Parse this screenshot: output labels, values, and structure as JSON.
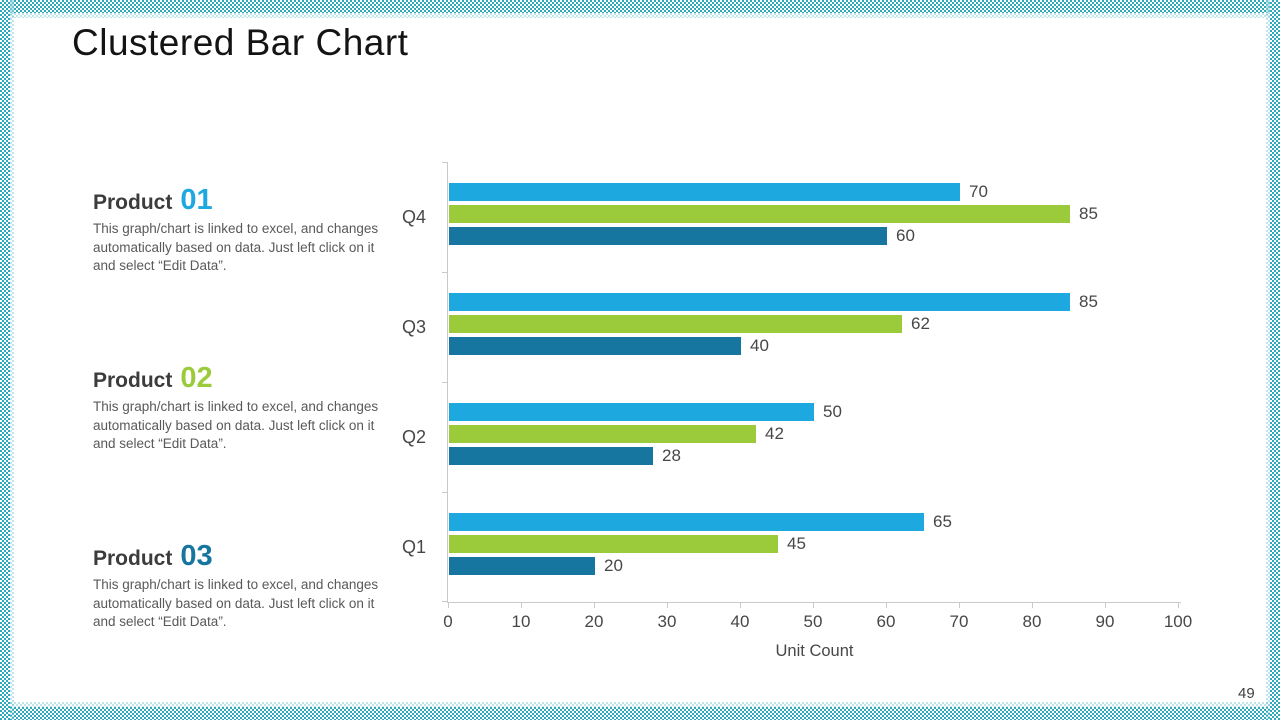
{
  "slide": {
    "title": "Clustered Bar Chart",
    "page_number": "49",
    "border_color": "#2ea9ba"
  },
  "products": [
    {
      "label": "Product",
      "number": "01",
      "number_color": "#1ea8e0",
      "description": "This graph/chart is linked to excel, and changes automatically based on data. Just left click on it and select “Edit Data”."
    },
    {
      "label": "Product",
      "number": "02",
      "number_color": "#9bcb3b",
      "description": "This graph/chart is linked to excel, and changes automatically based on data. Just left click on it and select “Edit Data”."
    },
    {
      "label": "Product",
      "number": "03",
      "number_color": "#16769f",
      "description": "This graph/chart is linked to excel, and changes automatically based on data. Just left click on it and select “Edit Data”."
    }
  ],
  "chart_data": {
    "type": "bar",
    "orientation": "horizontal",
    "title": "",
    "xlabel": "Unit Count",
    "ylabel": "",
    "xlim": [
      0,
      100
    ],
    "x_ticks": [
      0,
      10,
      20,
      30,
      40,
      50,
      60,
      70,
      80,
      90,
      100
    ],
    "grid": false,
    "legend_position": "none",
    "data_labels": true,
    "categories": [
      "Q4",
      "Q3",
      "Q2",
      "Q1"
    ],
    "series": [
      {
        "name": "Product 01",
        "color": "#1ea8e0",
        "values": [
          70,
          85,
          50,
          65
        ]
      },
      {
        "name": "Product 02",
        "color": "#9bcb3b",
        "values": [
          85,
          62,
          42,
          45
        ]
      },
      {
        "name": "Product 03",
        "color": "#16769f",
        "values": [
          60,
          40,
          28,
          20
        ]
      }
    ]
  }
}
